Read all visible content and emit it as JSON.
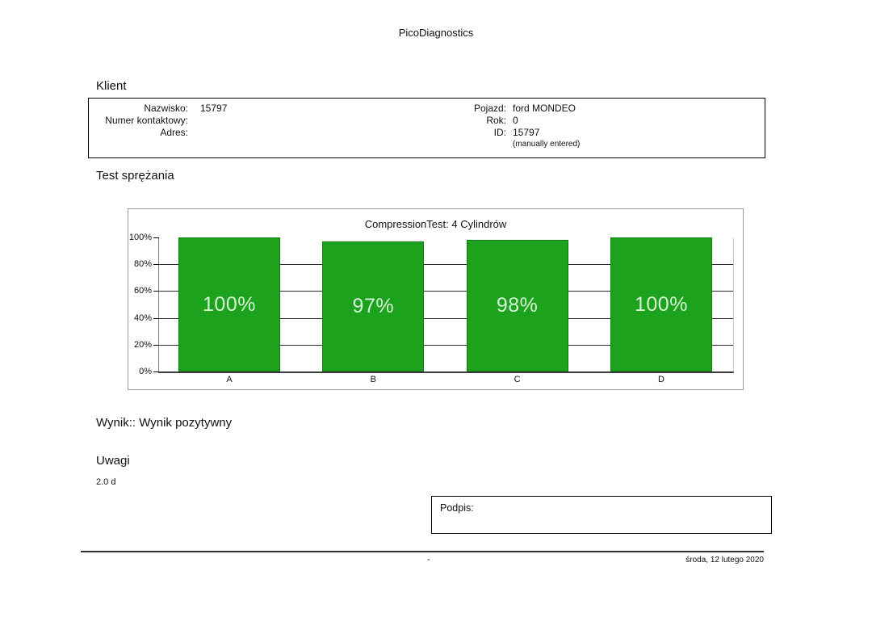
{
  "report": {
    "app_title": "PicoDiagnostics",
    "client_section": {
      "title": "Klient",
      "fields_left": [
        {
          "label": "Nazwisko:",
          "value": "15797"
        },
        {
          "label": "Numer kontaktowy:",
          "value": ""
        },
        {
          "label": "Adres:",
          "value": ""
        }
      ],
      "fields_right": [
        {
          "label": "Pojazd:",
          "value": "ford MONDEO"
        },
        {
          "label": "Rok:",
          "value": "0"
        },
        {
          "label": "ID:",
          "value": "15797"
        }
      ],
      "id_note": "(manually entered)"
    },
    "test_section": {
      "title": "Test sprężania"
    },
    "result": {
      "label": "Wynik::",
      "value": "Wynik pozytywny"
    },
    "notes_section": {
      "title": "Uwagi",
      "text": "2.0 d"
    },
    "signature": {
      "label": "Podpis:"
    },
    "footer": {
      "separator": "-",
      "date": "środa, 12 lutego 2020"
    }
  },
  "chart_data": {
    "type": "bar",
    "title": "CompressionTest: 4 Cylindrów",
    "categories": [
      "A",
      "B",
      "C",
      "D"
    ],
    "values": [
      100,
      97,
      98,
      100
    ],
    "value_labels": [
      "100%",
      "97%",
      "98%",
      "100%"
    ],
    "y_ticks_top_to_bottom": [
      "100%",
      "80%",
      "60%",
      "40%",
      "20%",
      "0%"
    ],
    "ylim": [
      0,
      100
    ],
    "grid": true,
    "legend_position": "none",
    "bar_color": "#1ca21c",
    "bar_border_color": "#118011",
    "bar_label_color": "#d7f3d7"
  }
}
